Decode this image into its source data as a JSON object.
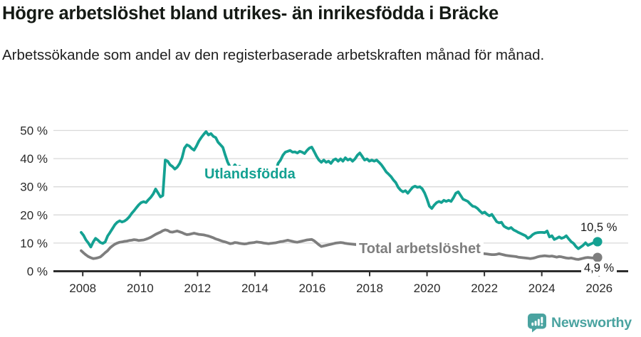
{
  "header": {
    "title": "Högre arbetslöshet bland utrikes- än inrikesfödda i Bräcke",
    "subtitle": "Arbetssökande som andel av den registerbaserade arbetskraften månad för månad."
  },
  "colors": {
    "series_foreign": "#14a192",
    "series_total": "#7e7e7e",
    "grid": "#d9d9d9",
    "axis": "#2d2d2d",
    "tick_text": "#2a2a2a",
    "brand_teal": "#4aa3a0"
  },
  "footer": {
    "brand_name": "Newsworthy"
  },
  "chart_data": {
    "type": "line",
    "title": "Högre arbetslöshet bland utrikes- än inrikesfödda i Bräcke",
    "subtitle": "Arbetssökande som andel av den registerbaserade arbetskraften månad för månad.",
    "x_unit": "month",
    "x_start": "2008-01",
    "x_end": "2025-12",
    "x_ticks": [
      2008,
      2010,
      2012,
      2014,
      2016,
      2018,
      2020,
      2022,
      2024,
      2026
    ],
    "y_ticks": [
      {
        "value": 0,
        "label": "0 %"
      },
      {
        "value": 10,
        "label": "10 %"
      },
      {
        "value": 20,
        "label": "20 %"
      },
      {
        "value": 30,
        "label": "30 %"
      },
      {
        "value": 40,
        "label": "40 %"
      },
      {
        "value": 50,
        "label": "50 %"
      }
    ],
    "ylim": [
      0,
      50
    ],
    "grid": "horizontal",
    "legend_position": "inline-labels",
    "series": [
      {
        "name": "utlandsfodda",
        "label": "Utlandsfödda",
        "color_key": "series_foreign",
        "end_label": "10,5 %",
        "end_value": 10.5,
        "values": [
          13.8,
          12.7,
          11.1,
          10.0,
          8.6,
          10.4,
          11.7,
          11.0,
          10.2,
          9.9,
          10.4,
          12.5,
          13.8,
          15.1,
          16.5,
          17.4,
          17.9,
          17.5,
          17.8,
          18.4,
          19.3,
          20.5,
          21.5,
          22.6,
          23.6,
          24.4,
          24.7,
          24.4,
          25.4,
          26.3,
          27.5,
          29.2,
          27.8,
          26.4,
          26.9,
          39.5,
          39.1,
          37.8,
          37.2,
          36.3,
          37.0,
          38.3,
          40.3,
          43.7,
          44.9,
          44.5,
          43.6,
          43.0,
          44.5,
          46.2,
          47.5,
          48.6,
          49.6,
          48.4,
          48.9,
          47.9,
          47.5,
          45.8,
          44.9,
          44.0,
          41.2,
          38.7,
          37.0,
          36.6,
          37.8,
          36.8,
          37.3,
          36.6,
          37.0,
          36.8,
          36.5,
          36.7,
          36.6,
          36.8,
          36.4,
          36.6,
          36.3,
          36.0,
          35.8,
          36.2,
          35.7,
          35.3,
          38.3,
          39.5,
          41.2,
          42.3,
          42.6,
          42.9,
          42.3,
          42.4,
          42.0,
          42.6,
          42.3,
          41.8,
          42.9,
          43.7,
          44.1,
          42.5,
          40.8,
          39.5,
          38.7,
          39.5,
          38.7,
          39.1,
          38.3,
          39.5,
          39.9,
          39.1,
          39.9,
          39.1,
          40.3,
          39.5,
          39.9,
          39.1,
          39.9,
          41.2,
          42.0,
          40.8,
          39.5,
          39.9,
          39.1,
          39.5,
          39.1,
          39.5,
          38.7,
          37.8,
          36.6,
          35.3,
          34.5,
          33.6,
          32.4,
          31.5,
          29.8,
          28.8,
          28.2,
          28.6,
          27.7,
          28.8,
          29.8,
          30.2,
          29.8,
          30.0,
          29.3,
          27.8,
          25.6,
          23.1,
          22.3,
          23.5,
          24.4,
          24.8,
          24.4,
          25.2,
          24.8,
          25.2,
          24.8,
          26.1,
          27.7,
          28.2,
          26.9,
          25.6,
          25.2,
          24.8,
          23.9,
          23.1,
          22.9,
          22.3,
          21.4,
          20.6,
          21.0,
          20.2,
          19.7,
          20.2,
          18.9,
          17.6,
          17.2,
          17.4,
          16.0,
          15.5,
          15.1,
          15.5,
          14.7,
          14.3,
          13.8,
          13.4,
          13.0,
          12.6,
          11.7,
          12.2,
          13.0,
          13.5,
          13.7,
          13.8,
          13.8,
          13.7,
          14.3,
          12.2,
          12.6,
          11.3,
          11.7,
          12.2,
          11.7,
          12.0,
          12.6,
          11.5,
          10.5,
          9.9,
          8.8,
          8.0,
          8.6,
          9.2,
          10.1,
          9.2,
          9.6,
          10.0,
          10.2,
          10.5
        ]
      },
      {
        "name": "total-arbetsloshet",
        "label": "Total arbetslöshet",
        "color_key": "series_total",
        "end_label": "4,9 %",
        "end_value": 4.9,
        "values": [
          7.3,
          6.5,
          5.8,
          5.2,
          4.8,
          4.5,
          4.6,
          4.8,
          5.1,
          5.8,
          6.6,
          7.3,
          8.3,
          9.0,
          9.6,
          10.0,
          10.3,
          10.4,
          10.6,
          10.7,
          10.9,
          11.0,
          11.2,
          11.1,
          10.9,
          11.0,
          11.1,
          11.4,
          11.7,
          12.1,
          12.6,
          13.1,
          13.5,
          13.9,
          14.4,
          14.7,
          14.5,
          14.0,
          13.9,
          14.1,
          14.3,
          14.0,
          13.7,
          13.3,
          13.0,
          13.1,
          13.3,
          13.5,
          13.3,
          13.1,
          13.0,
          12.9,
          12.7,
          12.5,
          12.2,
          11.9,
          11.5,
          11.2,
          10.9,
          10.6,
          10.4,
          10.1,
          9.8,
          9.9,
          10.2,
          10.1,
          9.9,
          9.8,
          9.7,
          9.8,
          10.0,
          10.1,
          10.2,
          10.4,
          10.3,
          10.2,
          10.0,
          9.9,
          9.8,
          9.9,
          10.0,
          10.1,
          10.3,
          10.5,
          10.6,
          10.8,
          11.0,
          10.8,
          10.6,
          10.4,
          10.3,
          10.5,
          10.7,
          10.9,
          11.1,
          11.2,
          11.3,
          10.8,
          10.1,
          9.4,
          8.8,
          9.0,
          9.2,
          9.4,
          9.6,
          9.8,
          10.0,
          10.1,
          10.2,
          10.1,
          9.9,
          9.8,
          9.7,
          9.6,
          9.5,
          9.4,
          9.3,
          9.2,
          9.1,
          9.0,
          9.0,
          8.9,
          8.8,
          8.7,
          8.6,
          8.5,
          8.4,
          8.3,
          8.2,
          8.1,
          8.0,
          7.9,
          7.9,
          7.8,
          7.8,
          7.7,
          7.7,
          7.6,
          7.6,
          7.6,
          7.5,
          7.5,
          7.6,
          7.7,
          7.8,
          8.0,
          8.3,
          8.5,
          8.6,
          8.6,
          8.5,
          8.4,
          8.3,
          8.2,
          8.1,
          8.0,
          7.9,
          7.8,
          7.6,
          7.4,
          7.2,
          7.1,
          6.9,
          6.8,
          6.6,
          6.5,
          6.4,
          6.3,
          6.2,
          6.1,
          6.0,
          5.9,
          5.9,
          6.0,
          6.2,
          6.0,
          5.8,
          5.6,
          5.5,
          5.4,
          5.3,
          5.2,
          5.0,
          4.9,
          4.8,
          4.7,
          4.6,
          4.5,
          4.6,
          4.8,
          5.1,
          5.3,
          5.4,
          5.5,
          5.4,
          5.3,
          5.4,
          5.2,
          5.0,
          5.2,
          5.1,
          4.9,
          4.7,
          4.6,
          4.7,
          4.5,
          4.3,
          4.2,
          4.4,
          4.6,
          4.8,
          4.9,
          4.8,
          4.7,
          4.8,
          4.9
        ]
      }
    ]
  }
}
